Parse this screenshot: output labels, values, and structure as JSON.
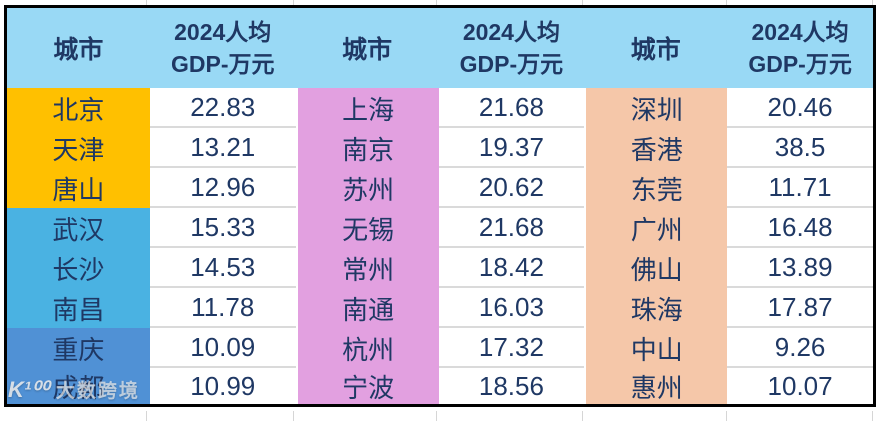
{
  "colors": {
    "header-bg": "#99D9F5",
    "yellow": "#FFC000",
    "skyblue": "#4AB2E2",
    "mediumblue": "#5091D5",
    "pink": "#E2A0E0",
    "peach": "#F5C7A9",
    "navy": "#1F3864",
    "divider": "#DADADA",
    "table-border": "#000000"
  },
  "table": {
    "header": {
      "city_label": "城市",
      "gdp_label_line1": "2024人均",
      "gdp_label_line2": "GDP-万元"
    },
    "groups": [
      {
        "rows": [
          {
            "city": "北京",
            "value": "22.83"
          },
          {
            "city": "天津",
            "value": "13.21"
          },
          {
            "city": "唐山",
            "value": "12.96"
          },
          {
            "city": "武汉",
            "value": "15.33"
          },
          {
            "city": "长沙",
            "value": "14.53"
          },
          {
            "city": "南昌",
            "value": "11.78"
          },
          {
            "city": "重庆",
            "value": "10.09"
          },
          {
            "city": "成都",
            "value": "10.99"
          }
        ]
      },
      {
        "rows": [
          {
            "city": "上海",
            "value": "21.68"
          },
          {
            "city": "南京",
            "value": "19.37"
          },
          {
            "city": "苏州",
            "value": "20.62"
          },
          {
            "city": "无锡",
            "value": "21.68"
          },
          {
            "city": "常州",
            "value": "18.42"
          },
          {
            "city": "南通",
            "value": "16.03"
          },
          {
            "city": "杭州",
            "value": "17.32"
          },
          {
            "city": "宁波",
            "value": "18.56"
          }
        ]
      },
      {
        "rows": [
          {
            "city": "深圳",
            "value": "20.46"
          },
          {
            "city": "香港",
            "value": "38.5"
          },
          {
            "city": "东莞",
            "value": "11.71"
          },
          {
            "city": "广州",
            "value": "16.48"
          },
          {
            "city": "佛山",
            "value": "13.89"
          },
          {
            "city": "珠海",
            "value": "17.87"
          },
          {
            "city": "中山",
            "value": "9.26"
          },
          {
            "city": "惠州",
            "value": "10.07"
          }
        ]
      }
    ]
  },
  "watermark": {
    "logo_text": "K¹⁰⁰",
    "text": "大数跨境"
  },
  "chart_data": {
    "type": "table",
    "title": "2024人均GDP-万元",
    "columns": [
      "城市",
      "2024人均GDP-万元",
      "城市",
      "2024人均GDP-万元",
      "城市",
      "2024人均GDP-万元"
    ],
    "rows": [
      [
        "北京",
        22.83,
        "上海",
        21.68,
        "深圳",
        20.46
      ],
      [
        "天津",
        13.21,
        "南京",
        19.37,
        "香港",
        38.5
      ],
      [
        "唐山",
        12.96,
        "苏州",
        20.62,
        "东莞",
        11.71
      ],
      [
        "武汉",
        15.33,
        "无锡",
        21.68,
        "广州",
        16.48
      ],
      [
        "长沙",
        14.53,
        "常州",
        18.42,
        "佛山",
        13.89
      ],
      [
        "南昌",
        11.78,
        "南通",
        16.03,
        "珠海",
        17.87
      ],
      [
        "重庆",
        10.09,
        "杭州",
        17.32,
        "中山",
        9.26
      ],
      [
        "成都",
        10.99,
        "宁波",
        18.56,
        "惠州",
        10.07
      ]
    ]
  }
}
